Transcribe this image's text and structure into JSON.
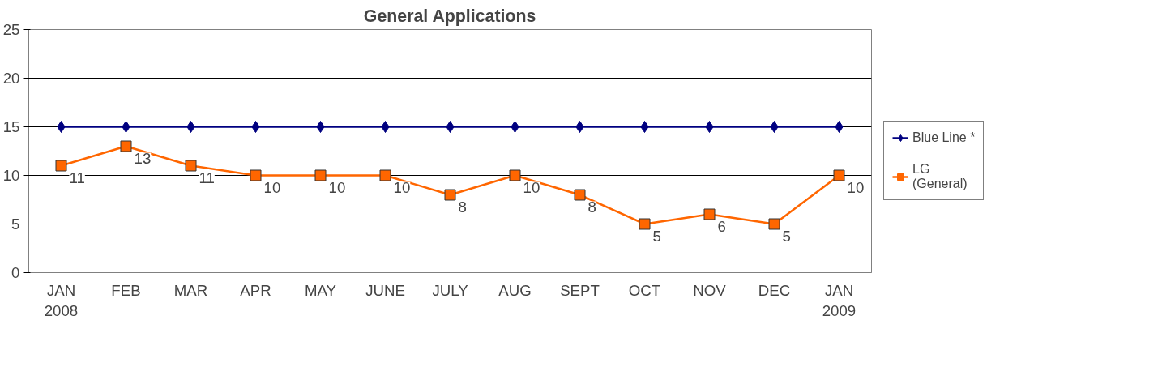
{
  "chart_data": {
    "type": "line",
    "title": "General Applications",
    "categories": [
      "JAN\n2008",
      "FEB",
      "MAR",
      "APR",
      "MAY",
      "JUNE",
      "JULY",
      "AUG",
      "SEPT",
      "OCT",
      "NOV",
      "DEC",
      "JAN\n2009"
    ],
    "ylim": [
      0,
      25
    ],
    "yticks": [
      0,
      5,
      10,
      15,
      20,
      25
    ],
    "grid": "y",
    "legend": "right",
    "series": [
      {
        "name": "Blue Line *",
        "color": "#000080",
        "marker": "diamond",
        "values": [
          15,
          15,
          15,
          15,
          15,
          15,
          15,
          15,
          15,
          15,
          15,
          15,
          15
        ]
      },
      {
        "name": "LG\n(General)",
        "color": "#ff6600",
        "marker": "square",
        "values": [
          11,
          13,
          11,
          10,
          10,
          10,
          8,
          10,
          8,
          5,
          6,
          5,
          10
        ],
        "value_labels": [
          "11",
          "13",
          "11",
          "10",
          "10",
          "10",
          "8",
          "10",
          "8",
          "5",
          "6",
          "5",
          "10"
        ]
      }
    ]
  }
}
